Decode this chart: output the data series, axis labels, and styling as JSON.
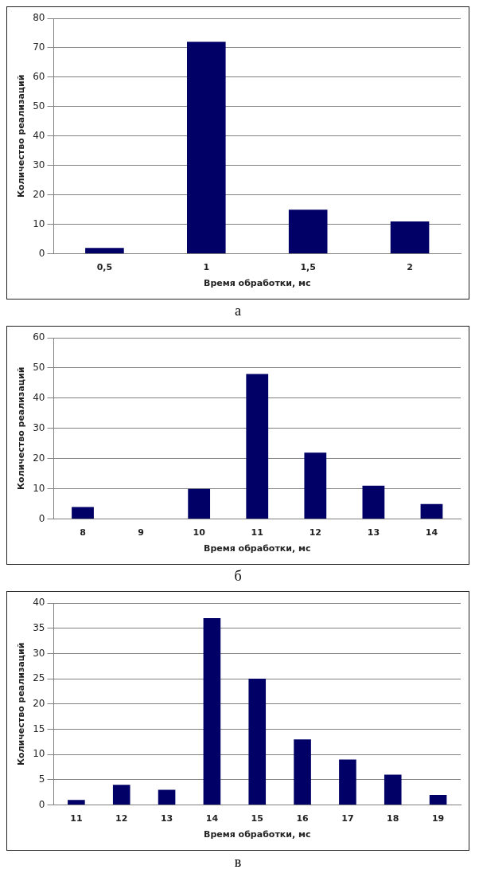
{
  "chart_data": [
    {
      "type": "bar",
      "xlabel": "Время обработки, мс",
      "ylabel": "Количество реализаций",
      "categories": [
        "0,5",
        "1",
        "1,5",
        "2"
      ],
      "values": [
        2,
        72,
        15,
        11
      ],
      "color": "#000066",
      "ylim": [
        0,
        80
      ],
      "yticks": [
        0,
        10,
        20,
        30,
        40,
        50,
        60,
        70,
        80
      ],
      "grid": "y",
      "annotations": [
        "а"
      ]
    },
    {
      "type": "bar",
      "xlabel": "Время обработки, мс",
      "ylabel": "Количество реализаций",
      "categories": [
        "8",
        "9",
        "10",
        "11",
        "12",
        "13",
        "14"
      ],
      "values": [
        4,
        0,
        10,
        48,
        22,
        11,
        5
      ],
      "color": "#000066",
      "ylim": [
        0,
        60
      ],
      "yticks": [
        0,
        10,
        20,
        30,
        40,
        50,
        60
      ],
      "grid": "y",
      "annotations": [
        "б"
      ]
    },
    {
      "type": "bar",
      "xlabel": "Время обработки, мс",
      "ylabel": "Количество реализаций",
      "categories": [
        "11",
        "12",
        "13",
        "14",
        "15",
        "16",
        "17",
        "18",
        "19"
      ],
      "values": [
        1,
        4,
        3,
        37,
        25,
        13,
        9,
        6,
        2
      ],
      "color": "#000066",
      "ylim": [
        0,
        40
      ],
      "yticks": [
        0,
        5,
        10,
        15,
        20,
        25,
        30,
        35,
        40
      ],
      "grid": "y",
      "annotations": [
        "в"
      ]
    }
  ]
}
